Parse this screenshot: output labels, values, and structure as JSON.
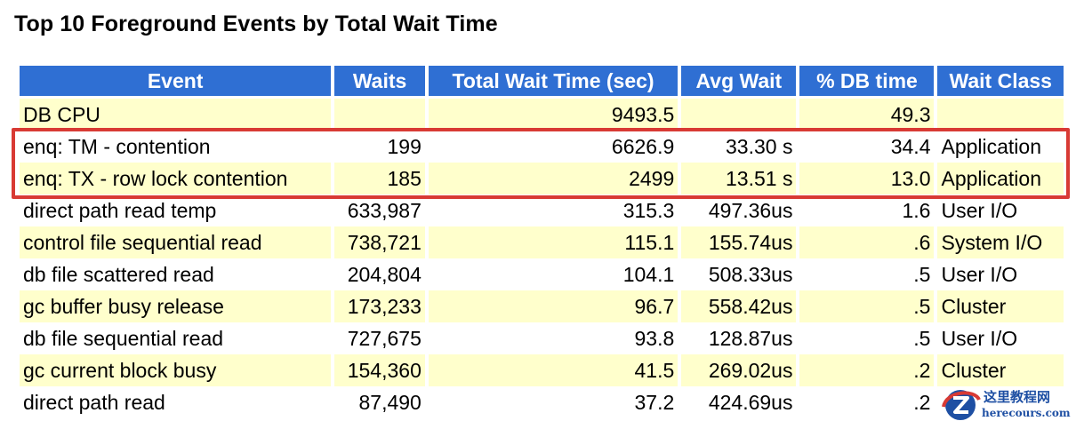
{
  "title": "Top 10 Foreground Events by Total Wait Time",
  "headers": [
    "Event",
    "Waits",
    "Total Wait Time (sec)",
    "Avg Wait",
    "% DB time",
    "Wait Class"
  ],
  "rows": [
    {
      "event": "DB CPU",
      "waits": "",
      "total": "9493.5",
      "avg": "",
      "pct": "49.3",
      "cls": ""
    },
    {
      "event": "enq: TM - contention",
      "waits": "199",
      "total": "6626.9",
      "avg": "33.30 s",
      "pct": "34.4",
      "cls": "Application"
    },
    {
      "event": "enq: TX - row lock contention",
      "waits": "185",
      "total": "2499",
      "avg": "13.51 s",
      "pct": "13.0",
      "cls": "Application"
    },
    {
      "event": "direct path read temp",
      "waits": "633,987",
      "total": "315.3",
      "avg": "497.36us",
      "pct": "1.6",
      "cls": "User I/O"
    },
    {
      "event": "control file sequential read",
      "waits": "738,721",
      "total": "115.1",
      "avg": "155.74us",
      "pct": ".6",
      "cls": "System I/O"
    },
    {
      "event": "db file scattered read",
      "waits": "204,804",
      "total": "104.1",
      "avg": "508.33us",
      "pct": ".5",
      "cls": "User I/O"
    },
    {
      "event": "gc buffer busy release",
      "waits": "173,233",
      "total": "96.7",
      "avg": "558.42us",
      "pct": ".5",
      "cls": "Cluster"
    },
    {
      "event": "db file sequential read",
      "waits": "727,675",
      "total": "93.8",
      "avg": "128.87us",
      "pct": ".5",
      "cls": "User I/O"
    },
    {
      "event": "gc current block busy",
      "waits": "154,360",
      "total": "41.5",
      "avg": "269.02us",
      "pct": ".2",
      "cls": "Cluster"
    },
    {
      "event": "direct path read",
      "waits": "87,490",
      "total": "37.2",
      "avg": "424.69us",
      "pct": ".2",
      "cls": ""
    }
  ],
  "watermark": {
    "line1": "这里教程网",
    "line2": "herecours.com"
  },
  "colors": {
    "header_bg": "#2f6fd3",
    "row_alt": "#ffffcc",
    "highlight": "#d83a34"
  }
}
